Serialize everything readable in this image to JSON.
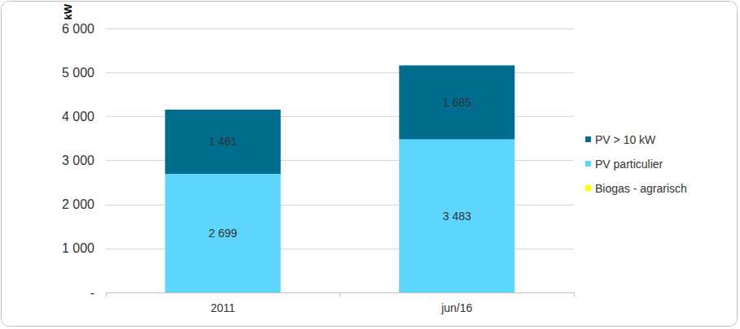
{
  "chart_data": {
    "type": "bar",
    "stacked": true,
    "data_labels": true,
    "grid": true,
    "legend": "right",
    "y_label": "kW",
    "categories": [
      "2011",
      "jun/16"
    ],
    "series": [
      {
        "name": "Biogas - agrarisch",
        "color": "#ffff00",
        "values": [
          null,
          null
        ]
      },
      {
        "name": "PV particulier",
        "color": "#5dd5fd",
        "values": [
          2699,
          3483
        ],
        "value_labels": [
          "2 699",
          "3 483"
        ]
      },
      {
        "name": "PV > 10 kW",
        "color": "#006c8e",
        "values": [
          1461,
          1685
        ],
        "value_labels": [
          "1 461",
          "1 685"
        ]
      }
    ],
    "ylim": [
      0,
      6000
    ],
    "yticks": [
      {
        "value": 0,
        "label": "-"
      },
      {
        "value": 1000,
        "label": "1 000"
      },
      {
        "value": 2000,
        "label": "2 000"
      },
      {
        "value": 3000,
        "label": "3 000"
      },
      {
        "value": 4000,
        "label": "4 000"
      },
      {
        "value": 5000,
        "label": "5 000"
      },
      {
        "value": 6000,
        "label": "6 000"
      }
    ]
  }
}
